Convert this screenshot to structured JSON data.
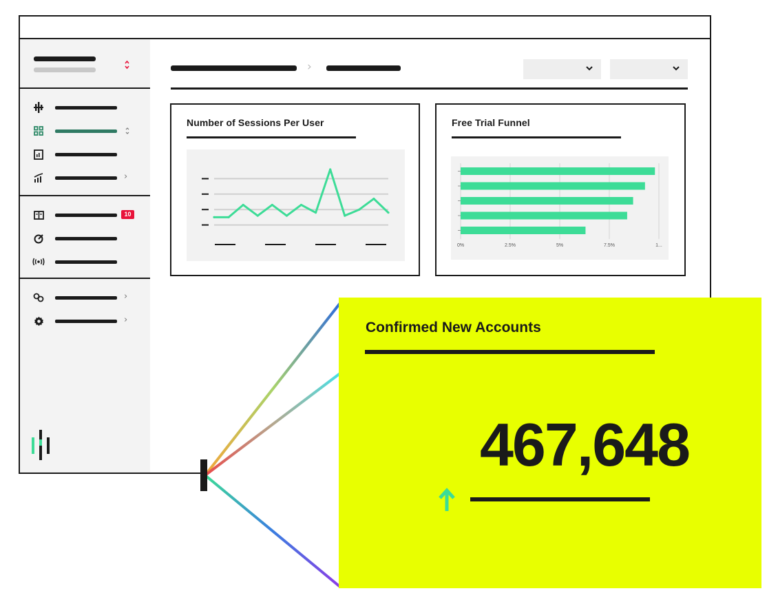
{
  "cards": {
    "sessions": {
      "title": "Number of Sessions Per User"
    },
    "funnel": {
      "title": "Free Trial Funnel"
    }
  },
  "sidebar": {
    "notification_badge": "10",
    "items": [
      {
        "icon": "pulse-icon"
      },
      {
        "icon": "grid-icon",
        "active": true
      },
      {
        "icon": "report-icon"
      },
      {
        "icon": "trend-icon"
      },
      {
        "icon": "book-icon"
      },
      {
        "icon": "target-icon"
      },
      {
        "icon": "broadcast-icon"
      },
      {
        "icon": "link-icon"
      },
      {
        "icon": "gear-icon"
      }
    ]
  },
  "chart_data": [
    {
      "type": "line",
      "title": "Number of Sessions Per User",
      "x": [
        1,
        2,
        3,
        4,
        5,
        6,
        7,
        8,
        9,
        10,
        11,
        12,
        13
      ],
      "values": [
        1.5,
        1.5,
        2.3,
        1.6,
        2.3,
        1.6,
        2.3,
        1.8,
        4.6,
        1.6,
        2.0,
        2.7,
        1.8
      ],
      "ylim": [
        0,
        5
      ],
      "grid": true
    },
    {
      "type": "bar",
      "orientation": "horizontal",
      "title": "Free Trial Funnel",
      "values": [
        9.8,
        9.3,
        8.7,
        8.4,
        6.3
      ],
      "xlim": [
        0,
        10
      ],
      "tick_labels": [
        "0%",
        "2.5%",
        "5%",
        "7.5%",
        "1..."
      ],
      "bar_color": "#3ddc97"
    }
  ],
  "kpi": {
    "title": "Confirmed New Accounts",
    "value": "467,648",
    "trend": "up",
    "trend_color": "#3ddc97",
    "background": "#e8ff00"
  }
}
